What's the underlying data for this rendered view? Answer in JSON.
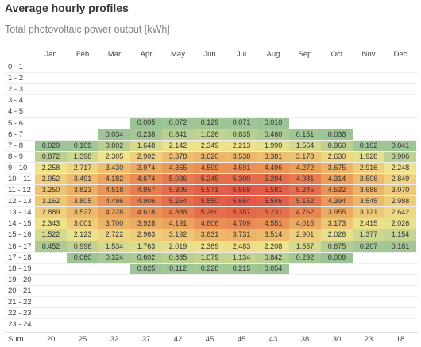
{
  "title": "Average hourly profiles",
  "subtitle": "Total photovoltaic power output [kWh]",
  "months": [
    "Jan",
    "Feb",
    "Mar",
    "Apr",
    "May",
    "Jun",
    "Jul",
    "Aug",
    "Sep",
    "Oct",
    "Nov",
    "Dec"
  ],
  "sum_label": "Sum",
  "chart_data": {
    "type": "heatmap",
    "title": "Average hourly profiles",
    "subtitle": "Total photovoltaic power output [kWh]",
    "columns": [
      "Jan",
      "Feb",
      "Mar",
      "Apr",
      "May",
      "Jun",
      "Jul",
      "Aug",
      "Sep",
      "Oct",
      "Nov",
      "Dec"
    ],
    "rows": [
      {
        "label": "0 - 1",
        "values": [
          "",
          "",
          "",
          "",
          "",
          "",
          "",
          "",
          "",
          "",
          "",
          ""
        ]
      },
      {
        "label": "1 - 2",
        "values": [
          "",
          "",
          "",
          "",
          "",
          "",
          "",
          "",
          "",
          "",
          "",
          ""
        ]
      },
      {
        "label": "2 - 3",
        "values": [
          "",
          "",
          "",
          "",
          "",
          "",
          "",
          "",
          "",
          "",
          "",
          ""
        ]
      },
      {
        "label": "3 - 4",
        "values": [
          "",
          "",
          "",
          "",
          "",
          "",
          "",
          "",
          "",
          "",
          "",
          ""
        ]
      },
      {
        "label": "4 - 5",
        "values": [
          "",
          "",
          "",
          "",
          "",
          "",
          "",
          "",
          "",
          "",
          "",
          ""
        ]
      },
      {
        "label": "5 - 6",
        "values": [
          "",
          "",
          "",
          "0.005",
          "0.072",
          "0.129",
          "0.071",
          "0.010",
          "",
          "",
          "",
          ""
        ]
      },
      {
        "label": "6 - 7",
        "values": [
          "",
          "",
          "0.034",
          "0.238",
          "0.841",
          "1.026",
          "0.835",
          "0.460",
          "0.151",
          "0.038",
          "",
          ""
        ]
      },
      {
        "label": "7 - 8",
        "values": [
          "0.029",
          "0.109",
          "0.802",
          "1.648",
          "2.142",
          "2.349",
          "2.213",
          "1.990",
          "1.564",
          "0.960",
          "0.162",
          "0.041"
        ]
      },
      {
        "label": "8 - 9",
        "values": [
          "0.872",
          "1.398",
          "2.305",
          "2.902",
          "3.378",
          "3.620",
          "3.538",
          "3.381",
          "3.178",
          "2.630",
          "1.928",
          "0.906"
        ]
      },
      {
        "label": "9 - 10",
        "values": [
          "2.258",
          "2.717",
          "3.430",
          "3.974",
          "4.365",
          "4.599",
          "4.591",
          "4.496",
          "4.272",
          "3.675",
          "2.916",
          "2.248"
        ]
      },
      {
        "label": "10 - 11",
        "values": [
          "2.952",
          "3.491",
          "4.182",
          "4.674",
          "5.036",
          "5.245",
          "5.300",
          "5.294",
          "4.981",
          "4.314",
          "3.506",
          "2.849"
        ]
      },
      {
        "label": "11 - 12",
        "values": [
          "3.250",
          "3.823",
          "4.518",
          "4.957",
          "5.305",
          "5.571",
          "5.659",
          "5.581",
          "5.245",
          "4.532",
          "3.686",
          "3.070"
        ]
      },
      {
        "label": "12 - 13",
        "values": [
          "3.162",
          "3.805",
          "4.496",
          "4.906",
          "5.264",
          "5.550",
          "5.664",
          "5.546",
          "5.152",
          "4.394",
          "3.545",
          "2.988"
        ]
      },
      {
        "label": "13 - 14",
        "values": [
          "2.889",
          "3.527",
          "4.228",
          "4.618",
          "4.888",
          "5.260",
          "5.357",
          "5.231",
          "4.762",
          "3.955",
          "3.121",
          "2.642"
        ]
      },
      {
        "label": "14 - 15",
        "values": [
          "2.343",
          "3.001",
          "3.700",
          "3.928",
          "4.191",
          "4.606",
          "4.709",
          "4.551",
          "4.015",
          "3.173",
          "2.415",
          "2.026"
        ]
      },
      {
        "label": "15 - 16",
        "values": [
          "1.522",
          "2.123",
          "2.722",
          "2.963",
          "3.192",
          "3.631",
          "3.731",
          "3.514",
          "2.901",
          "2.026",
          "1.377",
          "1.154"
        ]
      },
      {
        "label": "16 - 17",
        "values": [
          "0.452",
          "0.996",
          "1.534",
          "1.763",
          "2.019",
          "2.389",
          "2.483",
          "2.208",
          "1.557",
          "0.675",
          "0.207",
          "0.181"
        ]
      },
      {
        "label": "17 - 18",
        "values": [
          "",
          "0.060",
          "0.324",
          "0.602",
          "0.835",
          "1.079",
          "1.134",
          "0.842",
          "0.292",
          "0.009",
          "",
          ""
        ]
      },
      {
        "label": "18 - 19",
        "values": [
          "",
          "",
          "",
          "0.025",
          "0.112",
          "0.228",
          "0.215",
          "0.054",
          "",
          "",
          "",
          ""
        ]
      },
      {
        "label": "19 - 20",
        "values": [
          "",
          "",
          "",
          "",
          "",
          "",
          "",
          "",
          "",
          "",
          "",
          ""
        ]
      },
      {
        "label": "20 - 21",
        "values": [
          "",
          "",
          "",
          "",
          "",
          "",
          "",
          "",
          "",
          "",
          "",
          ""
        ]
      },
      {
        "label": "21 - 22",
        "values": [
          "",
          "",
          "",
          "",
          "",
          "",
          "",
          "",
          "",
          "",
          "",
          ""
        ]
      },
      {
        "label": "22 - 23",
        "values": [
          "",
          "",
          "",
          "",
          "",
          "",
          "",
          "",
          "",
          "",
          "",
          ""
        ]
      },
      {
        "label": "23 - 24",
        "values": [
          "",
          "",
          "",
          "",
          "",
          "",
          "",
          "",
          "",
          "",
          "",
          ""
        ]
      }
    ],
    "sums": [
      "20",
      "25",
      "32",
      "37",
      "42",
      "45",
      "45",
      "43",
      "38",
      "30",
      "23",
      "18"
    ],
    "color_scale": {
      "low": "#8fbc8f",
      "mid": "#f0e68c",
      "high": "#e8524a"
    }
  }
}
